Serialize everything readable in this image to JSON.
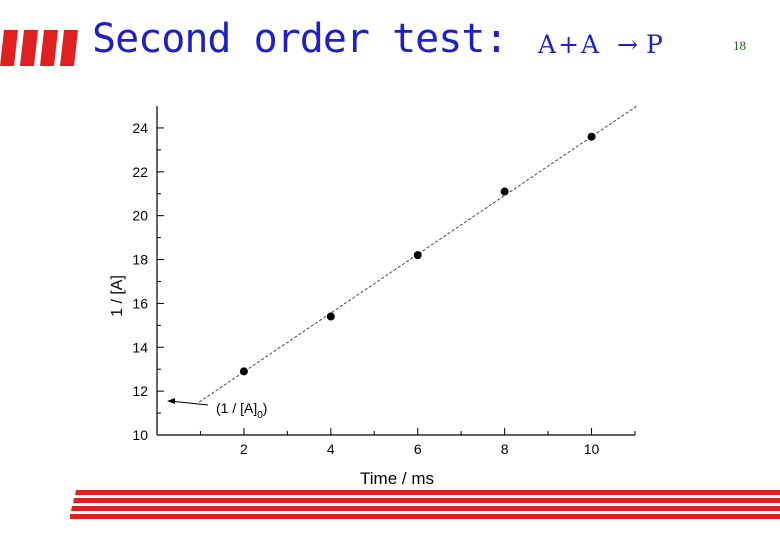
{
  "slide": {
    "title": "Second order test:",
    "formula": {
      "reactant_1": "A",
      "plus": "+",
      "reactant_2": "A",
      "arrow": "→",
      "product": "P"
    },
    "page_number": "18",
    "colors": {
      "title": "#1f1fc8",
      "stripes": "#e02020",
      "page_number": "#1e6b1e"
    }
  },
  "chart_data": {
    "type": "scatter",
    "x": [
      2,
      4,
      6,
      8,
      10
    ],
    "y": [
      12.9,
      15.4,
      18.2,
      21.1,
      23.6
    ],
    "fit_line": {
      "slope": 1.34,
      "intercept": 10.2,
      "style": "dashed"
    },
    "xlabel": "Time / ms",
    "ylabel": "1 / [A]",
    "xlim": [
      0,
      11
    ],
    "ylim": [
      10,
      25
    ],
    "xticks": [
      2,
      4,
      6,
      8,
      10
    ],
    "yticks": [
      10,
      12,
      14,
      16,
      18,
      20,
      22,
      24
    ],
    "annotation": {
      "text": "(1 / [A]",
      "subscript": "0",
      "suffix": ")"
    },
    "grid": false
  }
}
